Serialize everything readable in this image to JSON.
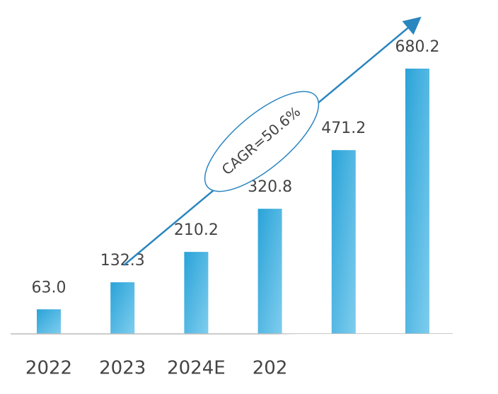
{
  "chart_data": {
    "type": "bar",
    "categories": [
      "2022",
      "2023",
      "2024E",
      "202",
      null,
      null
    ],
    "values": [
      63.0,
      132.3,
      210.2,
      320.8,
      471.2,
      680.2
    ],
    "value_labels": [
      "63.0",
      "132.3",
      "210.2",
      "320.8",
      "471.2",
      "680.2"
    ],
    "color": "#2aa3d8",
    "annotation": "CAGR=50.6%"
  }
}
